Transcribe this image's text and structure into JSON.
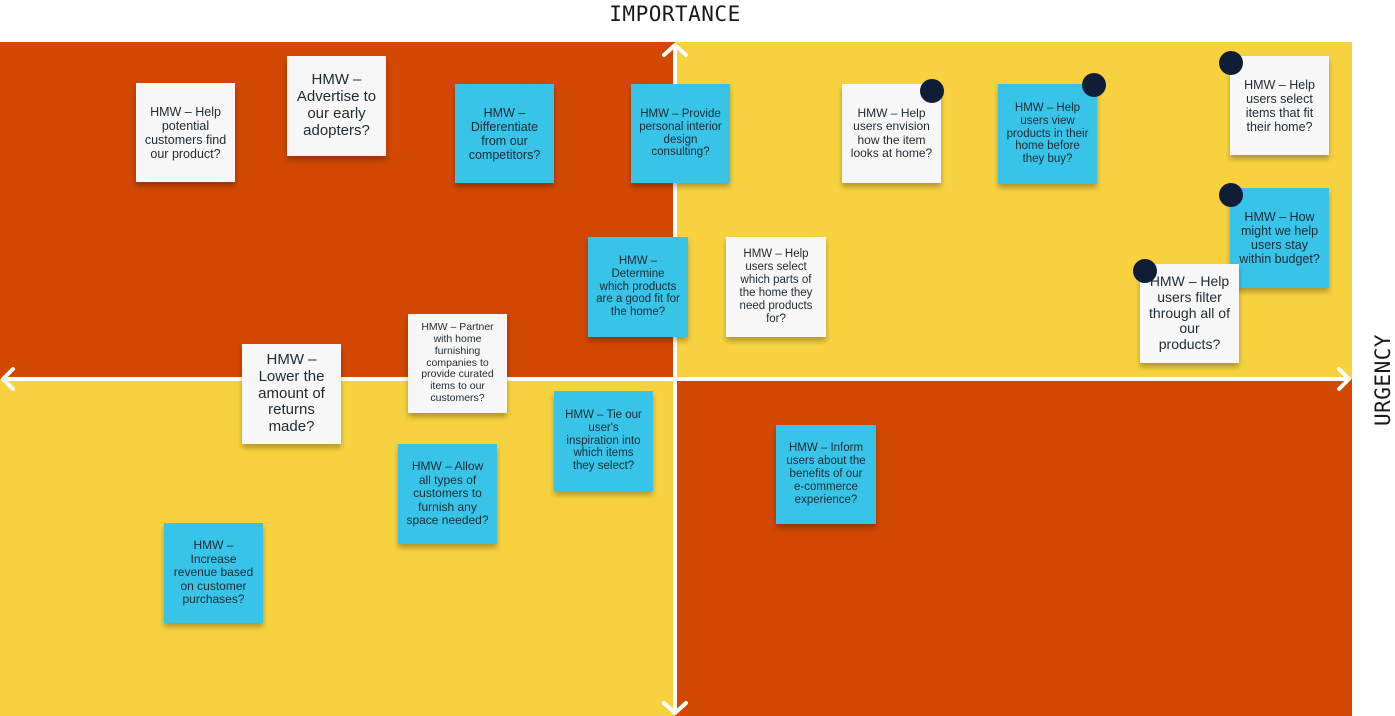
{
  "axes": {
    "top_label": "IMPORTANCE",
    "right_label": "URGENCY"
  },
  "colors": {
    "high_quadrant": "#d24800",
    "low_quadrant": "#f7d23e",
    "note_white": "#f7f7f7",
    "note_blue": "#38c4e8",
    "vote_dot": "#0f1d36",
    "axis_line": "#ffffff"
  },
  "notes": [
    {
      "text": "HMW – Help potential customers find our product?",
      "color": "white"
    },
    {
      "text": "HMW – Advertise to our early adopters?",
      "color": "white"
    },
    {
      "text": "HMW – Differentiate from our competitors?",
      "color": "blue"
    },
    {
      "text": "HMW – Provide personal interior design consulting?",
      "color": "blue"
    },
    {
      "text": "HMW – Help users envision how the item looks at home?",
      "color": "white",
      "votes": 1
    },
    {
      "text": "HMW – Help users view products in their home before they buy?",
      "color": "blue",
      "votes": 1
    },
    {
      "text": "HMW – Help users select items that fit their home?",
      "color": "white",
      "votes": 1
    },
    {
      "text": "HMW – How might we help users stay within budget?",
      "color": "blue",
      "votes": 1
    },
    {
      "text": "HMW – Determine which products are a good fit for the home?",
      "color": "blue"
    },
    {
      "text": "HMW – Help users select which parts of the home they need products for?",
      "color": "white"
    },
    {
      "text": "HMW – Help users filter through all of our products?",
      "color": "white",
      "votes": 1
    },
    {
      "text": "HMW – Partner with home furnishing companies to provide curated items to our customers?",
      "color": "white"
    },
    {
      "text": "HMW – Lower the amount of returns made?",
      "color": "white"
    },
    {
      "text": "HMW – Tie our user's inspiration into which items they select?",
      "color": "blue"
    },
    {
      "text": "HMW – Allow all types of customers to furnish any space needed?",
      "color": "blue"
    },
    {
      "text": "HMW – Inform users about the benefits of our e-commerce experience?",
      "color": "blue"
    },
    {
      "text": "HMW – Increase revenue based on customer purchases?",
      "color": "blue"
    }
  ]
}
